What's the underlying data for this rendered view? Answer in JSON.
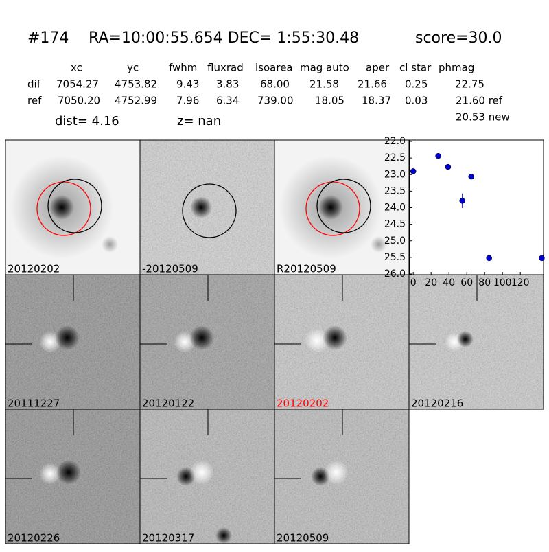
{
  "header": {
    "id": "#174",
    "coords": "RA=10:00:55.654 DEC= 1:55:30.48",
    "score": "score=30.0"
  },
  "table": {
    "columns": [
      "xc",
      "yc",
      "fwhm",
      "fluxrad",
      "isoarea",
      "mag auto",
      "aper",
      "cl star",
      "phmag"
    ],
    "rows": [
      [
        "dif",
        "7054.27",
        "4753.82",
        "9.43",
        "3.83",
        "68.00",
        "21.58",
        "21.66",
        "0.25",
        "22.75"
      ],
      [
        "ref",
        "7050.20",
        "4752.99",
        "7.96",
        "6.34",
        "739.00",
        "18.05",
        "18.37",
        "0.03",
        "21.60 ref"
      ]
    ],
    "extra": "20.53 new"
  },
  "info": {
    "dist": "dist=  4.16",
    "z": "z=   nan"
  },
  "stamps": [
    {
      "label": "20120202",
      "label_color": "#000000"
    },
    {
      "label": "-20120509",
      "label_color": "#000000"
    },
    {
      "label": "R20120509",
      "label_color": "#000000"
    },
    {
      "label": "20111227",
      "label_color": "#000000"
    },
    {
      "label": "20120122",
      "label_color": "#000000"
    },
    {
      "label": "20120202",
      "label_color": "#ff0000"
    },
    {
      "label": "20120216",
      "label_color": "#000000"
    },
    {
      "label": "20120226",
      "label_color": "#000000"
    },
    {
      "label": "20120317",
      "label_color": "#000000"
    },
    {
      "label": "20120509",
      "label_color": "#000000"
    }
  ],
  "chart_data": {
    "type": "scatter",
    "x": [
      0,
      28,
      39,
      55,
      65,
      85,
      144
    ],
    "series": [
      {
        "color": "#0000cc",
        "values": [
          22.9,
          22.44,
          22.77,
          23.79,
          23.06,
          25.52,
          25.52
        ],
        "errors": [
          0.05,
          0.04,
          0.04,
          0.22,
          0.05,
          0.06,
          0.06
        ]
      }
    ],
    "xlim": [
      -4,
      146
    ],
    "ylim": [
      22.0,
      26.0
    ],
    "y_inverted": true,
    "xticks": [
      0,
      20,
      40,
      60,
      80,
      100,
      120
    ],
    "yticks": [
      {
        "value": 22,
        "label": "22.0"
      },
      22.5,
      {
        "value": 23,
        "label": "23.0"
      },
      23.5,
      {
        "value": 24,
        "label": "24.0"
      },
      24.5,
      {
        "value": 25,
        "label": "25.0"
      },
      25.5,
      {
        "value": 26,
        "label": "26.0"
      }
    ]
  }
}
